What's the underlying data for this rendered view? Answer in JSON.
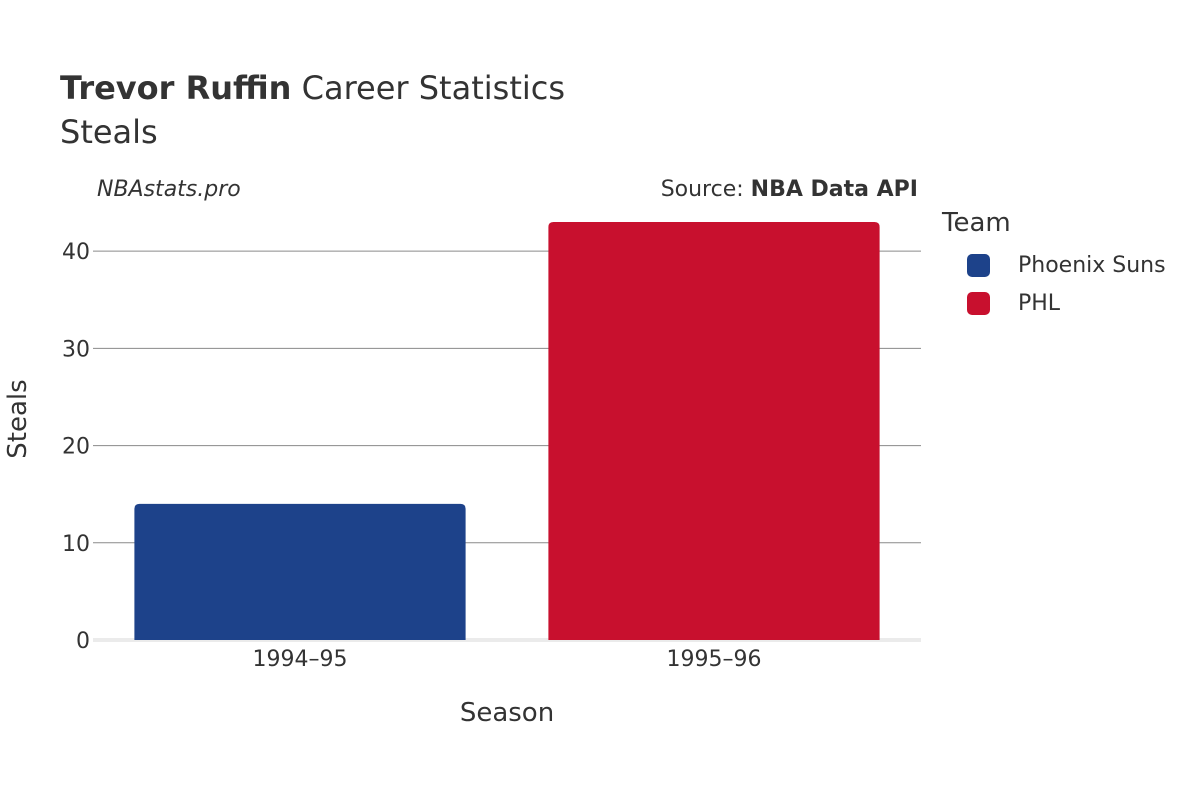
{
  "header": {
    "title_bold": "Trevor Ruffin",
    "title_rest": " Career Statistics",
    "subtitle": "Steals",
    "watermark": "NBAstats.pro",
    "source_prefix": "Source: ",
    "source_name": "NBA Data API"
  },
  "legend": {
    "title": "Team",
    "items": [
      {
        "label": "Phoenix Suns",
        "color": "#1d428a"
      },
      {
        "label": "PHL",
        "color": "#c8102e"
      }
    ]
  },
  "chart_data": {
    "type": "bar",
    "title": "Trevor Ruffin Career Statistics",
    "subtitle": "Steals",
    "xlabel": "Season",
    "ylabel": "Steals",
    "categories": [
      "1994–95",
      "1995–96"
    ],
    "series": [
      {
        "name": "Phoenix Suns",
        "color": "#1d428a",
        "values": [
          14,
          null
        ]
      },
      {
        "name": "PHL",
        "color": "#c8102e",
        "values": [
          null,
          43
        ]
      }
    ],
    "ylim": [
      0,
      43
    ],
    "yticks": [
      0,
      10,
      20,
      30,
      40
    ],
    "grid": true,
    "legend_position": "right"
  }
}
